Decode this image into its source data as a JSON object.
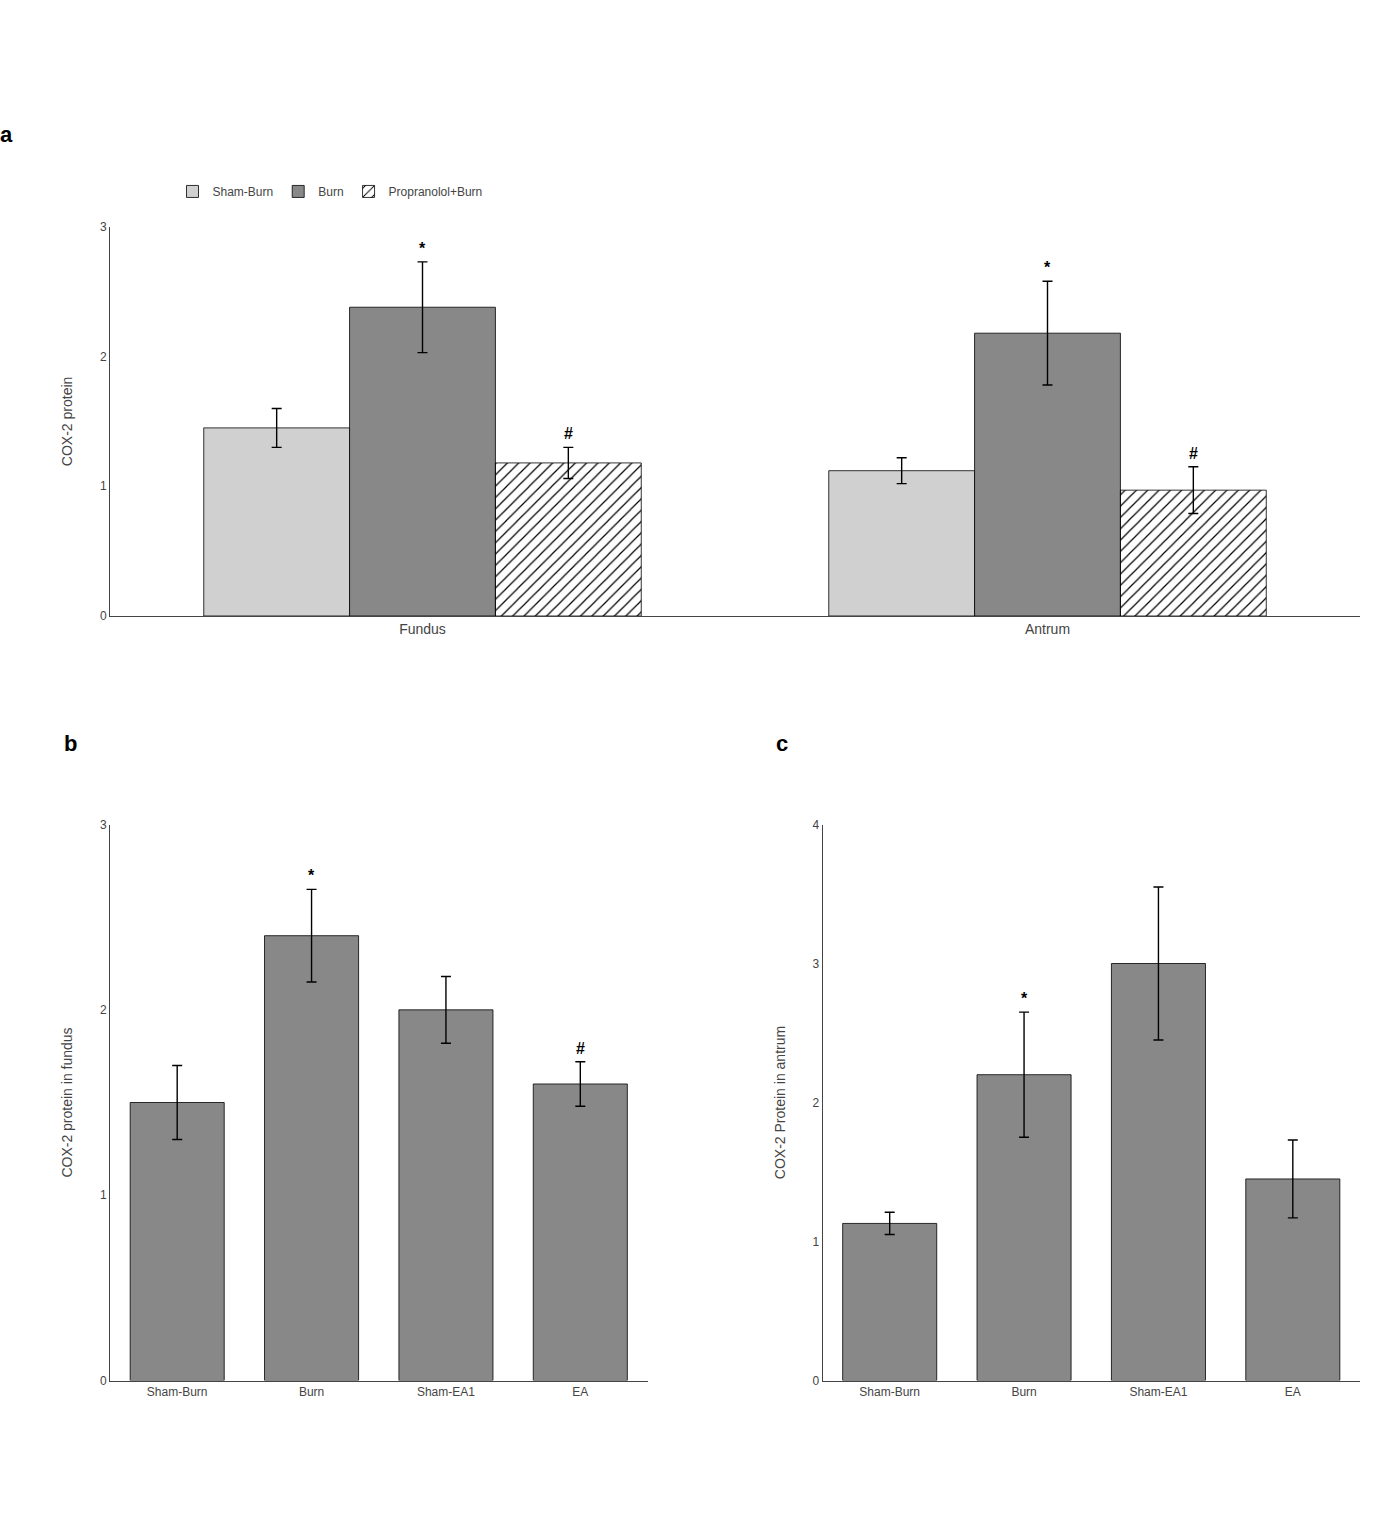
{
  "chart_data": [
    {
      "type": "bar",
      "title": "a",
      "categories": [
        "Fundus",
        "Antrum"
      ],
      "series": [
        {
          "name": "Sham-Burn",
          "color": "#d0d0d0",
          "values": [
            1.45,
            1.12
          ],
          "errors": [
            0.15,
            0.1
          ]
        },
        {
          "name": "Burn",
          "color": "#888888",
          "values": [
            2.38,
            2.18
          ],
          "errors": [
            0.35,
            0.4
          ]
        },
        {
          "name": "Propranolol+Burn",
          "color": "#aaaaaa",
          "marker": "hatch",
          "values": [
            1.18,
            0.97
          ],
          "errors": [
            0.12,
            0.18
          ]
        }
      ],
      "ylabel": "COX-2 protein",
      "ylim": [
        0,
        3
      ],
      "yticks": [
        0,
        1,
        2,
        3
      ],
      "grid": false,
      "legend": "top",
      "annotations": [
        {
          "text": "*",
          "category": "Fundus",
          "series": "Burn"
        },
        {
          "text": "#",
          "category": "Fundus",
          "series": "Propranolol+Burn"
        },
        {
          "text": "*",
          "category": "Antrum",
          "series": "Burn"
        },
        {
          "text": "#",
          "category": "Antrum",
          "series": "Propranolol+Burn"
        }
      ]
    },
    {
      "type": "bar",
      "title": "b",
      "categories": [
        "Sham-Burn",
        "Burn",
        "Sham-EA1",
        "EA"
      ],
      "values": [
        1.5,
        2.4,
        2.0,
        1.6
      ],
      "errors": [
        0.2,
        0.25,
        0.18,
        0.12
      ],
      "color": "#888888",
      "ylabel": "COX-2 protein in fundus",
      "ylim": [
        0,
        3
      ],
      "yticks": [
        0,
        1,
        2,
        3
      ],
      "grid": false,
      "annotations": [
        {
          "text": "*",
          "category": "Burn"
        },
        {
          "text": "#",
          "category": "EA"
        }
      ]
    },
    {
      "type": "bar",
      "title": "c",
      "categories": [
        "Sham-Burn",
        "Burn",
        "Sham-EA1",
        "EA"
      ],
      "values": [
        1.13,
        2.2,
        3.0,
        1.45
      ],
      "errors": [
        0.08,
        0.45,
        0.55,
        0.28
      ],
      "color": "#888888",
      "ylabel": "COX-2 Protein in antrum",
      "ylim": [
        0,
        4
      ],
      "yticks": [
        0,
        1,
        2,
        3,
        4
      ],
      "grid": false,
      "annotations": [
        {
          "text": "*",
          "category": "Burn"
        }
      ]
    }
  ]
}
